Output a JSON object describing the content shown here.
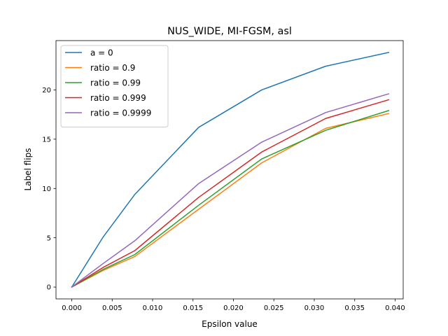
{
  "chart_data": {
    "type": "line",
    "title": "NUS_WIDE, MI-FGSM, asl",
    "xlabel": "Epsilon value",
    "ylabel": "Label flips",
    "xlim": [
      -0.00195,
      0.041
    ],
    "ylim": [
      -1.2,
      25.0
    ],
    "xticks": [
      0.0,
      0.005,
      0.01,
      0.015,
      0.02,
      0.025,
      0.03,
      0.035,
      0.04
    ],
    "xtick_labels": [
      "0.000",
      "0.005",
      "0.010",
      "0.015",
      "0.020",
      "0.025",
      "0.030",
      "0.035",
      "0.040"
    ],
    "yticks": [
      0,
      5,
      10,
      15,
      20
    ],
    "ytick_labels": [
      "0",
      "5",
      "10",
      "15",
      "20"
    ],
    "grid": false,
    "legend_position": "top-left",
    "x": [
      0.0,
      0.0039,
      0.0078,
      0.0157,
      0.0235,
      0.0314,
      0.0392
    ],
    "series": [
      {
        "name": "a = 0",
        "color": "#1f77b4",
        "values": [
          0.0,
          5.1,
          9.4,
          16.2,
          20.0,
          22.4,
          23.8
        ]
      },
      {
        "name": "ratio = 0.9",
        "color": "#ff7f0e",
        "values": [
          0.0,
          1.7,
          3.1,
          7.9,
          12.6,
          16.1,
          17.6
        ]
      },
      {
        "name": "ratio = 0.99",
        "color": "#2ca02c",
        "values": [
          0.0,
          1.8,
          3.3,
          8.3,
          13.0,
          15.9,
          17.9
        ]
      },
      {
        "name": "ratio = 0.999",
        "color": "#d62728",
        "values": [
          0.0,
          2.0,
          3.7,
          9.1,
          13.7,
          17.1,
          19.0
        ]
      },
      {
        "name": "ratio = 0.9999",
        "color": "#9467bd",
        "values": [
          0.0,
          2.4,
          4.7,
          10.5,
          14.7,
          17.7,
          19.6
        ]
      }
    ]
  }
}
